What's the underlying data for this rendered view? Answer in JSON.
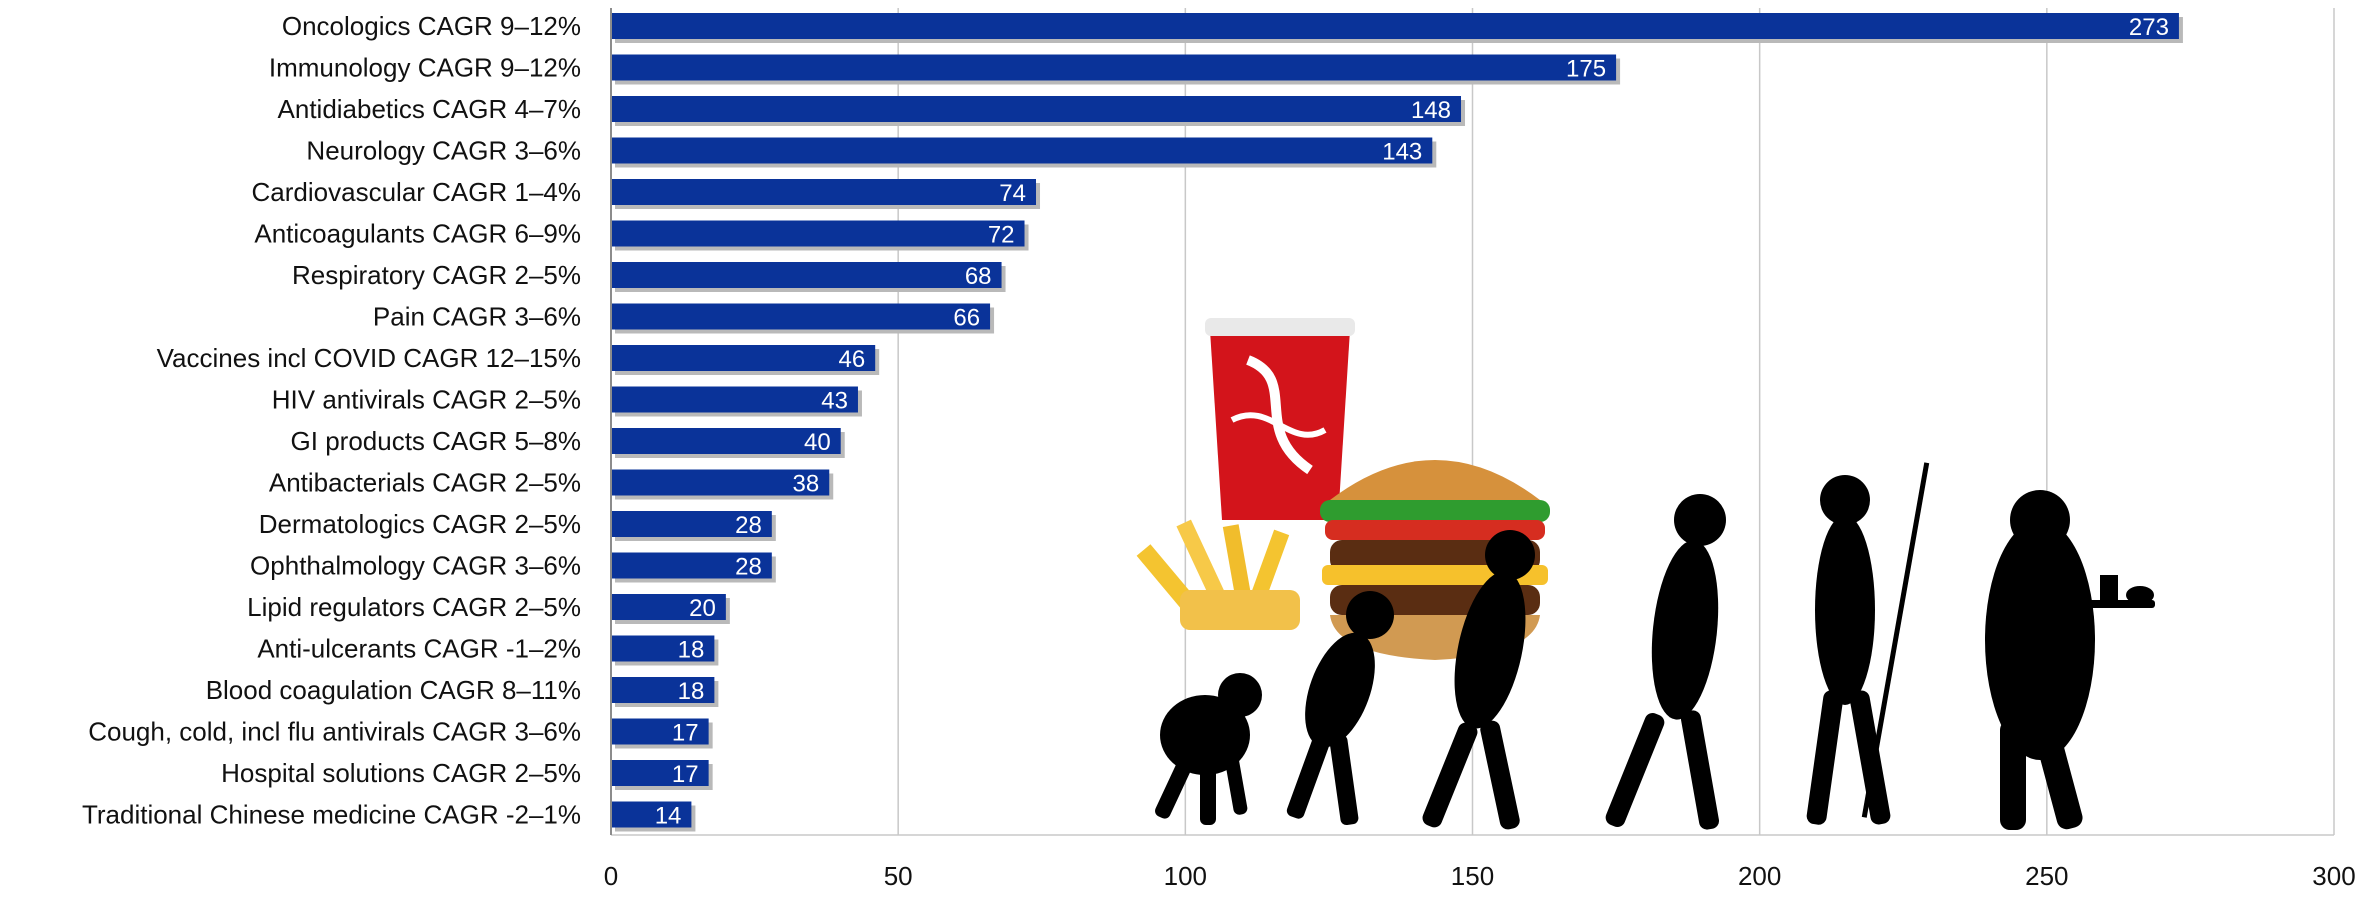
{
  "chart_data": {
    "type": "bar",
    "orientation": "horizontal",
    "title": "",
    "xlabel": "",
    "ylabel": "",
    "categories": [
      "Oncologics CAGR 9–12%",
      "Immunology CAGR 9–12%",
      "Antidiabetics CAGR 4–7%",
      "Neurology CAGR 3–6%",
      "Cardiovascular CAGR 1–4%",
      "Anticoagulants CAGR 6–9%",
      "Respiratory CAGR 2–5%",
      "Pain CAGR 3–6%",
      "Vaccines incl COVID CAGR 12–15%",
      "HIV antivirals CAGR 2–5%",
      "GI products CAGR 5–8%",
      "Antibacterials CAGR 2–5%",
      "Dermatologics CAGR 2–5%",
      "Ophthalmology CAGR 3–6%",
      "Lipid regulators CAGR 2–5%",
      "Anti-ulcerants CAGR -1–2%",
      "Blood coagulation CAGR 8–11%",
      "Cough, cold, incl flu antivirals CAGR 3–6%",
      "Hospital solutions CAGR 2–5%",
      "Traditional Chinese medicine  CAGR -2–1%"
    ],
    "values": [
      273,
      175,
      148,
      143,
      74,
      72,
      68,
      66,
      46,
      43,
      40,
      38,
      28,
      28,
      20,
      18,
      18,
      17,
      17,
      14
    ],
    "xlim": [
      0,
      300
    ],
    "xticks": [
      0,
      50,
      100,
      150,
      200,
      250,
      300
    ],
    "grid": true,
    "legend": "none",
    "colors": {
      "bar": "#0a3399",
      "bar_shadow": "#b9b9b9",
      "label": "#ffffff",
      "grid": "#c8c8c8",
      "text": "#111111"
    }
  },
  "illustration": {
    "icons": [
      "soda-cup-icon",
      "burger-icon",
      "fries-icon",
      "human-evolution-silhouettes-icon"
    ]
  }
}
